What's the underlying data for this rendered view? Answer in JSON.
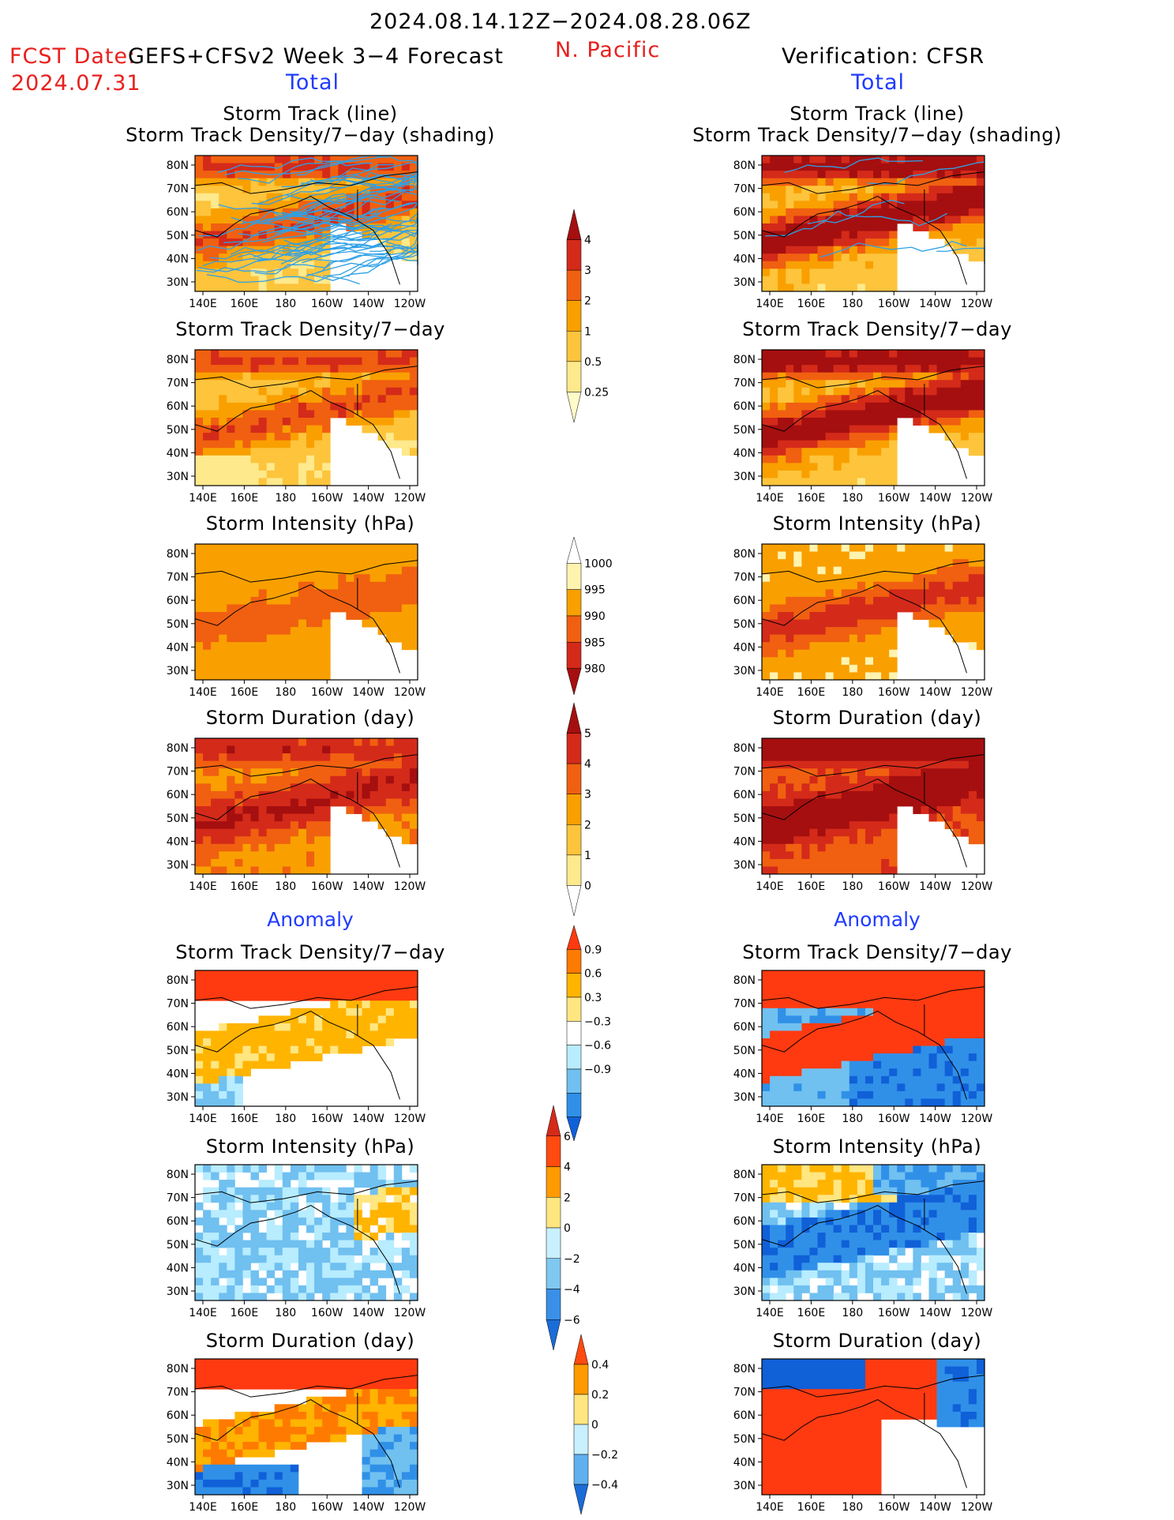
{
  "header": {
    "period": "2024.08.14.12Z−2024.08.28.06Z",
    "fcst_label": "FCST Date:",
    "fcst_date": "2024.07.31",
    "model": "GEFS+CFSv2 Week 3−4 Forecast",
    "region": "N. Pacific",
    "verification": "Verification: CFSR",
    "left_total": "Total",
    "right_total": "Total",
    "left_anomaly": "Anomaly",
    "right_anomaly": "Anomaly"
  },
  "panel_titles": {
    "track_line": "Storm Track (line)",
    "track_shading": "Storm Track Density/7−day (shading)",
    "density": "Storm Track Density/7−day",
    "intensity": "Storm Intensity (hPa)",
    "duration": "Storm Duration (day)"
  },
  "axes": {
    "x_ticks": [
      "140E",
      "160E",
      "180",
      "160W",
      "140W",
      "120W"
    ],
    "y_ticks": [
      "80N",
      "70N",
      "60N",
      "50N",
      "40N",
      "30N"
    ]
  },
  "colorbars": [
    {
      "id": "density_total",
      "labels": [
        "4",
        "3",
        "2",
        "1",
        "0.5",
        "0.25"
      ],
      "colors": [
        "#a50f0f",
        "#d42a1a",
        "#f06010",
        "#f9a000",
        "#fdc43c",
        "#fee98c",
        "#fffbc8"
      ]
    },
    {
      "id": "intensity_total",
      "labels": [
        "1000",
        "995",
        "990",
        "985",
        "980"
      ],
      "colors": [
        "#ffffff",
        "#fff3b0",
        "#f9a000",
        "#f06010",
        "#d42a1a",
        "#a50f0f"
      ]
    },
    {
      "id": "duration_total",
      "labels": [
        "5",
        "4",
        "3",
        "2",
        "1",
        "0"
      ],
      "colors": [
        "#a50f0f",
        "#d42a1a",
        "#f06010",
        "#f9a000",
        "#fdc43c",
        "#fee98c",
        "#ffffff"
      ]
    },
    {
      "id": "density_anom",
      "labels": [
        "0.9",
        "0.6",
        "0.3",
        "−0.3",
        "−0.6",
        "−0.9"
      ],
      "colors": [
        "#ff3a10",
        "#ff7a00",
        "#ffb400",
        "#ffe680",
        "#ffffff",
        "#b8ecff",
        "#70c0f0",
        "#3090e8",
        "#1060d8"
      ]
    },
    {
      "id": "intensity_anom",
      "labels": [
        "6",
        "4",
        "2",
        "0",
        "−2",
        "−4",
        "−6"
      ],
      "colors": [
        "#d42a1a",
        "#ff4a10",
        "#ff9a00",
        "#ffe680",
        "#c8f0ff",
        "#80c8f0",
        "#3a90e8",
        "#1a6cd8"
      ]
    },
    {
      "id": "duration_anom",
      "labels": [
        "0.4",
        "0.2",
        "0",
        "−0.2",
        "−0.4"
      ],
      "colors": [
        "#ff4a10",
        "#ff9a00",
        "#ffe680",
        "#c8f0ff",
        "#60b0f0",
        "#1a6cd8"
      ]
    }
  ],
  "chart_data": [
    {
      "type": "heatmap",
      "title": "Storm Track (line) / Storm Track Density/7-day (shading)",
      "source": "GEFS+CFSv2 Week 3-4 Forecast",
      "component": "Total"
    },
    {
      "type": "heatmap",
      "title": "Storm Track (line) / Storm Track Density/7-day (shading)",
      "source": "CFSR",
      "component": "Total"
    },
    {
      "type": "heatmap",
      "title": "Storm Track Density/7-day",
      "source": "GEFS+CFSv2 Week 3-4 Forecast",
      "component": "Total"
    },
    {
      "type": "heatmap",
      "title": "Storm Track Density/7-day",
      "source": "CFSR",
      "component": "Total"
    },
    {
      "type": "heatmap",
      "title": "Storm Intensity (hPa)",
      "source": "GEFS+CFSv2 Week 3-4 Forecast",
      "component": "Total"
    },
    {
      "type": "heatmap",
      "title": "Storm Intensity (hPa)",
      "source": "CFSR",
      "component": "Total"
    },
    {
      "type": "heatmap",
      "title": "Storm Duration (day)",
      "source": "GEFS+CFSv2 Week 3-4 Forecast",
      "component": "Total"
    },
    {
      "type": "heatmap",
      "title": "Storm Duration (day)",
      "source": "CFSR",
      "component": "Total"
    },
    {
      "type": "heatmap",
      "title": "Storm Track Density/7-day",
      "source": "GEFS+CFSv2 Week 3-4 Forecast",
      "component": "Anomaly"
    },
    {
      "type": "heatmap",
      "title": "Storm Track Density/7-day",
      "source": "CFSR",
      "component": "Anomaly"
    },
    {
      "type": "heatmap",
      "title": "Storm Intensity (hPa)",
      "source": "GEFS+CFSv2 Week 3-4 Forecast",
      "component": "Anomaly"
    },
    {
      "type": "heatmap",
      "title": "Storm Intensity (hPa)",
      "source": "CFSR",
      "component": "Anomaly"
    },
    {
      "type": "heatmap",
      "title": "Storm Duration (day)",
      "source": "GEFS+CFSv2 Week 3-4 Forecast",
      "component": "Anomaly"
    },
    {
      "type": "heatmap",
      "title": "Storm Duration (day)",
      "source": "CFSR",
      "component": "Anomaly"
    }
  ]
}
